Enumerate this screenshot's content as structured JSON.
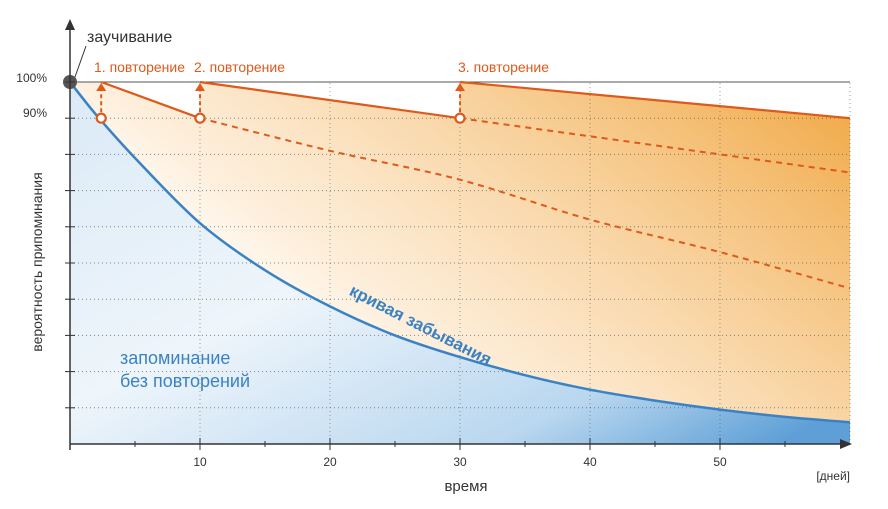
{
  "chart_data": {
    "type": "line",
    "xlabel": "время",
    "xunit": "[дней]",
    "ylabel": "вероятность припоминания",
    "xlim": [
      0,
      60
    ],
    "ylim": [
      0,
      100
    ],
    "x_ticks": [
      10,
      20,
      30,
      40,
      50
    ],
    "y_ticks": [
      {
        "value": 100,
        "label": "100%"
      },
      {
        "value": 90,
        "label": "90%"
      }
    ],
    "learning_label": "заучивание",
    "forgetting_curve": {
      "name": "кривая забывания",
      "x": [
        0,
        2,
        5,
        10,
        15,
        20,
        25,
        30,
        35,
        40,
        45,
        50,
        55,
        60
      ],
      "y": [
        100,
        91,
        79,
        61,
        48,
        38,
        30,
        24,
        19,
        15,
        12,
        9.5,
        7.5,
        6
      ]
    },
    "no_repetition_area_label": [
      "запоминание",
      "без повторений"
    ],
    "repetitions": [
      {
        "label": "1. повторение",
        "x": 2.4,
        "decay": {
          "x": [
            2.4,
            10
          ],
          "y": [
            100,
            90
          ]
        },
        "decay_no_further": {
          "x": [
            2.4,
            10,
            60
          ],
          "y": [
            100,
            90,
            90
          ]
        }
      },
      {
        "label": "2. повторение",
        "x": 10,
        "decay": {
          "x": [
            10,
            30
          ],
          "y": [
            100,
            90
          ]
        },
        "decay_no_further": {
          "x": [
            10,
            20,
            30,
            40,
            50,
            60
          ],
          "y": [
            90,
            81,
            73,
            62,
            53,
            43
          ]
        }
      },
      {
        "label": "3. повторение",
        "x": 30,
        "decay": {
          "x": [
            30,
            60
          ],
          "y": [
            100,
            90
          ]
        },
        "decay_no_further": {
          "x": [
            30,
            40,
            50,
            60
          ],
          "y": [
            90,
            85,
            80,
            75
          ]
        }
      }
    ],
    "colors": {
      "axis": "#333333",
      "grid": "#555555",
      "forgetting": "#3a82c4",
      "forgetting_fill": "#9ec6e8",
      "repetition": "#dd5a1c",
      "repetition_fill": "#f0a640",
      "dot": "#555555"
    }
  }
}
